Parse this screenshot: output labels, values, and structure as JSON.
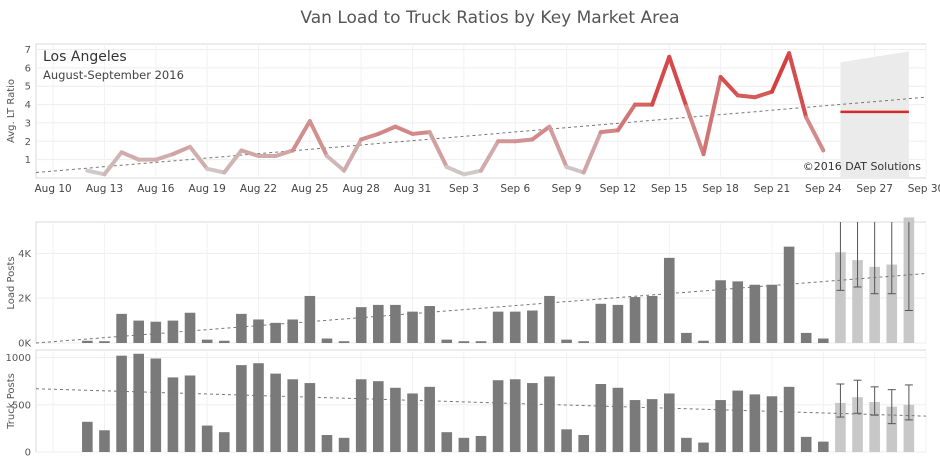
{
  "title": "Van Load to Truck Ratios by Key Market Area",
  "market": "Los Angeles",
  "period": "August-September 2016",
  "copyright": "©2016 DAT Solutions",
  "colors": {
    "ratio_low": "#cfcfcf",
    "ratio_high": "#d62a2a",
    "actual_bar": "#7a7a7a",
    "forecast_bar": "#c8c8c8",
    "forecast_band": "#ebebeb",
    "trend": "#777777"
  },
  "chart_data": [
    {
      "type": "line",
      "id": "ratio",
      "ylabel": "Avg. LT Ratio",
      "ylim": [
        0,
        7.3
      ],
      "yticks": [
        1,
        2,
        3,
        4,
        5,
        6,
        7
      ],
      "x_range": [
        0,
        52
      ],
      "xticks": [
        {
          "d": 1,
          "label": "Aug 10"
        },
        {
          "d": 4,
          "label": "Aug 13"
        },
        {
          "d": 7,
          "label": "Aug 16"
        },
        {
          "d": 10,
          "label": "Aug 19"
        },
        {
          "d": 13,
          "label": "Aug 22"
        },
        {
          "d": 16,
          "label": "Aug 25"
        },
        {
          "d": 19,
          "label": "Aug 28"
        },
        {
          "d": 22,
          "label": "Aug 31"
        },
        {
          "d": 25,
          "label": "Sep 3"
        },
        {
          "d": 28,
          "label": "Sep 6"
        },
        {
          "d": 31,
          "label": "Sep 9"
        },
        {
          "d": 34,
          "label": "Sep 12"
        },
        {
          "d": 37,
          "label": "Sep 15"
        },
        {
          "d": 40,
          "label": "Sep 18"
        },
        {
          "d": 43,
          "label": "Sep 21"
        },
        {
          "d": 46,
          "label": "Sep 24"
        },
        {
          "d": 49,
          "label": "Sep 27"
        },
        {
          "d": 52,
          "label": "Sep 30"
        }
      ],
      "x": [
        3,
        4,
        5,
        6,
        7,
        8,
        9,
        10,
        11,
        12,
        13,
        14,
        15,
        16,
        17,
        18,
        19,
        20,
        21,
        22,
        23,
        24,
        25,
        26,
        27,
        28,
        29,
        30,
        31,
        32,
        33,
        34,
        35,
        36,
        37,
        38,
        39,
        40,
        41,
        42,
        43,
        44,
        45,
        46
      ],
      "values": [
        0.4,
        0.2,
        1.4,
        1.0,
        1.0,
        1.3,
        1.7,
        0.5,
        0.3,
        1.5,
        1.2,
        1.2,
        1.5,
        3.1,
        1.2,
        0.4,
        2.1,
        2.4,
        2.8,
        2.4,
        2.5,
        0.6,
        0.2,
        0.4,
        2.0,
        2.0,
        2.1,
        2.8,
        0.6,
        0.3,
        2.5,
        2.6,
        4.0,
        4.0,
        6.6,
        3.9,
        1.3,
        5.5,
        4.5,
        4.4,
        4.7,
        6.8,
        3.3,
        1.5
      ],
      "forecast": {
        "x": [
          47,
          51
        ],
        "value": 3.6,
        "band": [
          [
            47,
            6.3,
            0
          ],
          [
            51,
            6.9,
            0
          ]
        ]
      },
      "trend": [
        [
          0,
          0.3
        ],
        [
          52,
          4.4
        ]
      ]
    },
    {
      "type": "bar",
      "id": "load_posts",
      "ylabel": "Load Posts",
      "ylim": [
        0,
        5400
      ],
      "ytick_values": [
        0,
        2000,
        4000
      ],
      "ytick_labels": [
        "0K",
        "2K",
        "4K"
      ],
      "x": [
        3,
        4,
        5,
        6,
        7,
        8,
        9,
        10,
        11,
        12,
        13,
        14,
        15,
        16,
        17,
        18,
        19,
        20,
        21,
        22,
        23,
        24,
        25,
        26,
        27,
        28,
        29,
        30,
        31,
        32,
        33,
        34,
        35,
        36,
        37,
        38,
        39,
        40,
        41,
        42,
        43,
        44,
        45,
        46
      ],
      "values": [
        100,
        80,
        1300,
        1000,
        950,
        1000,
        1350,
        150,
        100,
        1300,
        1050,
        900,
        1050,
        2100,
        200,
        80,
        1600,
        1700,
        1700,
        1400,
        1650,
        150,
        80,
        80,
        1400,
        1400,
        1450,
        2100,
        150,
        80,
        1750,
        1700,
        2050,
        2100,
        3800,
        450,
        100,
        2800,
        2750,
        2600,
        2600,
        4300,
        450,
        200
      ],
      "forecast": {
        "x": [
          47,
          48,
          49,
          50,
          51
        ],
        "values": [
          4050,
          3700,
          3400,
          3500,
          5600
        ],
        "error": [
          [
            2350,
            5600
          ],
          [
            2500,
            5600
          ],
          [
            2200,
            5600
          ],
          [
            2200,
            5600
          ],
          [
            1450,
            5600
          ]
        ]
      },
      "trend": [
        [
          0,
          0
        ],
        [
          52,
          3100
        ]
      ]
    },
    {
      "type": "bar",
      "id": "truck_posts",
      "ylabel": "Truck Posts",
      "ylim": [
        0,
        1080
      ],
      "ytick_values": [
        0,
        500,
        1000
      ],
      "ytick_labels": [
        "0",
        "500",
        "1000"
      ],
      "x": [
        3,
        4,
        5,
        6,
        7,
        8,
        9,
        10,
        11,
        12,
        13,
        14,
        15,
        16,
        17,
        18,
        19,
        20,
        21,
        22,
        23,
        24,
        25,
        26,
        27,
        28,
        29,
        30,
        31,
        32,
        33,
        34,
        35,
        36,
        37,
        38,
        39,
        40,
        41,
        42,
        43,
        44,
        45,
        46
      ],
      "values": [
        320,
        230,
        1020,
        1040,
        990,
        790,
        810,
        280,
        210,
        920,
        940,
        830,
        770,
        730,
        180,
        150,
        770,
        750,
        680,
        620,
        690,
        210,
        150,
        170,
        760,
        770,
        730,
        800,
        240,
        180,
        720,
        680,
        550,
        560,
        620,
        150,
        100,
        550,
        650,
        610,
        590,
        690,
        160,
        110
      ],
      "forecast": {
        "x": [
          47,
          48,
          49,
          50,
          51
        ],
        "values": [
          520,
          580,
          530,
          480,
          500
        ],
        "error": [
          [
            370,
            720
          ],
          [
            410,
            760
          ],
          [
            390,
            690
          ],
          [
            300,
            660
          ],
          [
            340,
            710
          ]
        ]
      },
      "trend": [
        [
          0,
          670
        ],
        [
          52,
          380
        ]
      ]
    }
  ]
}
